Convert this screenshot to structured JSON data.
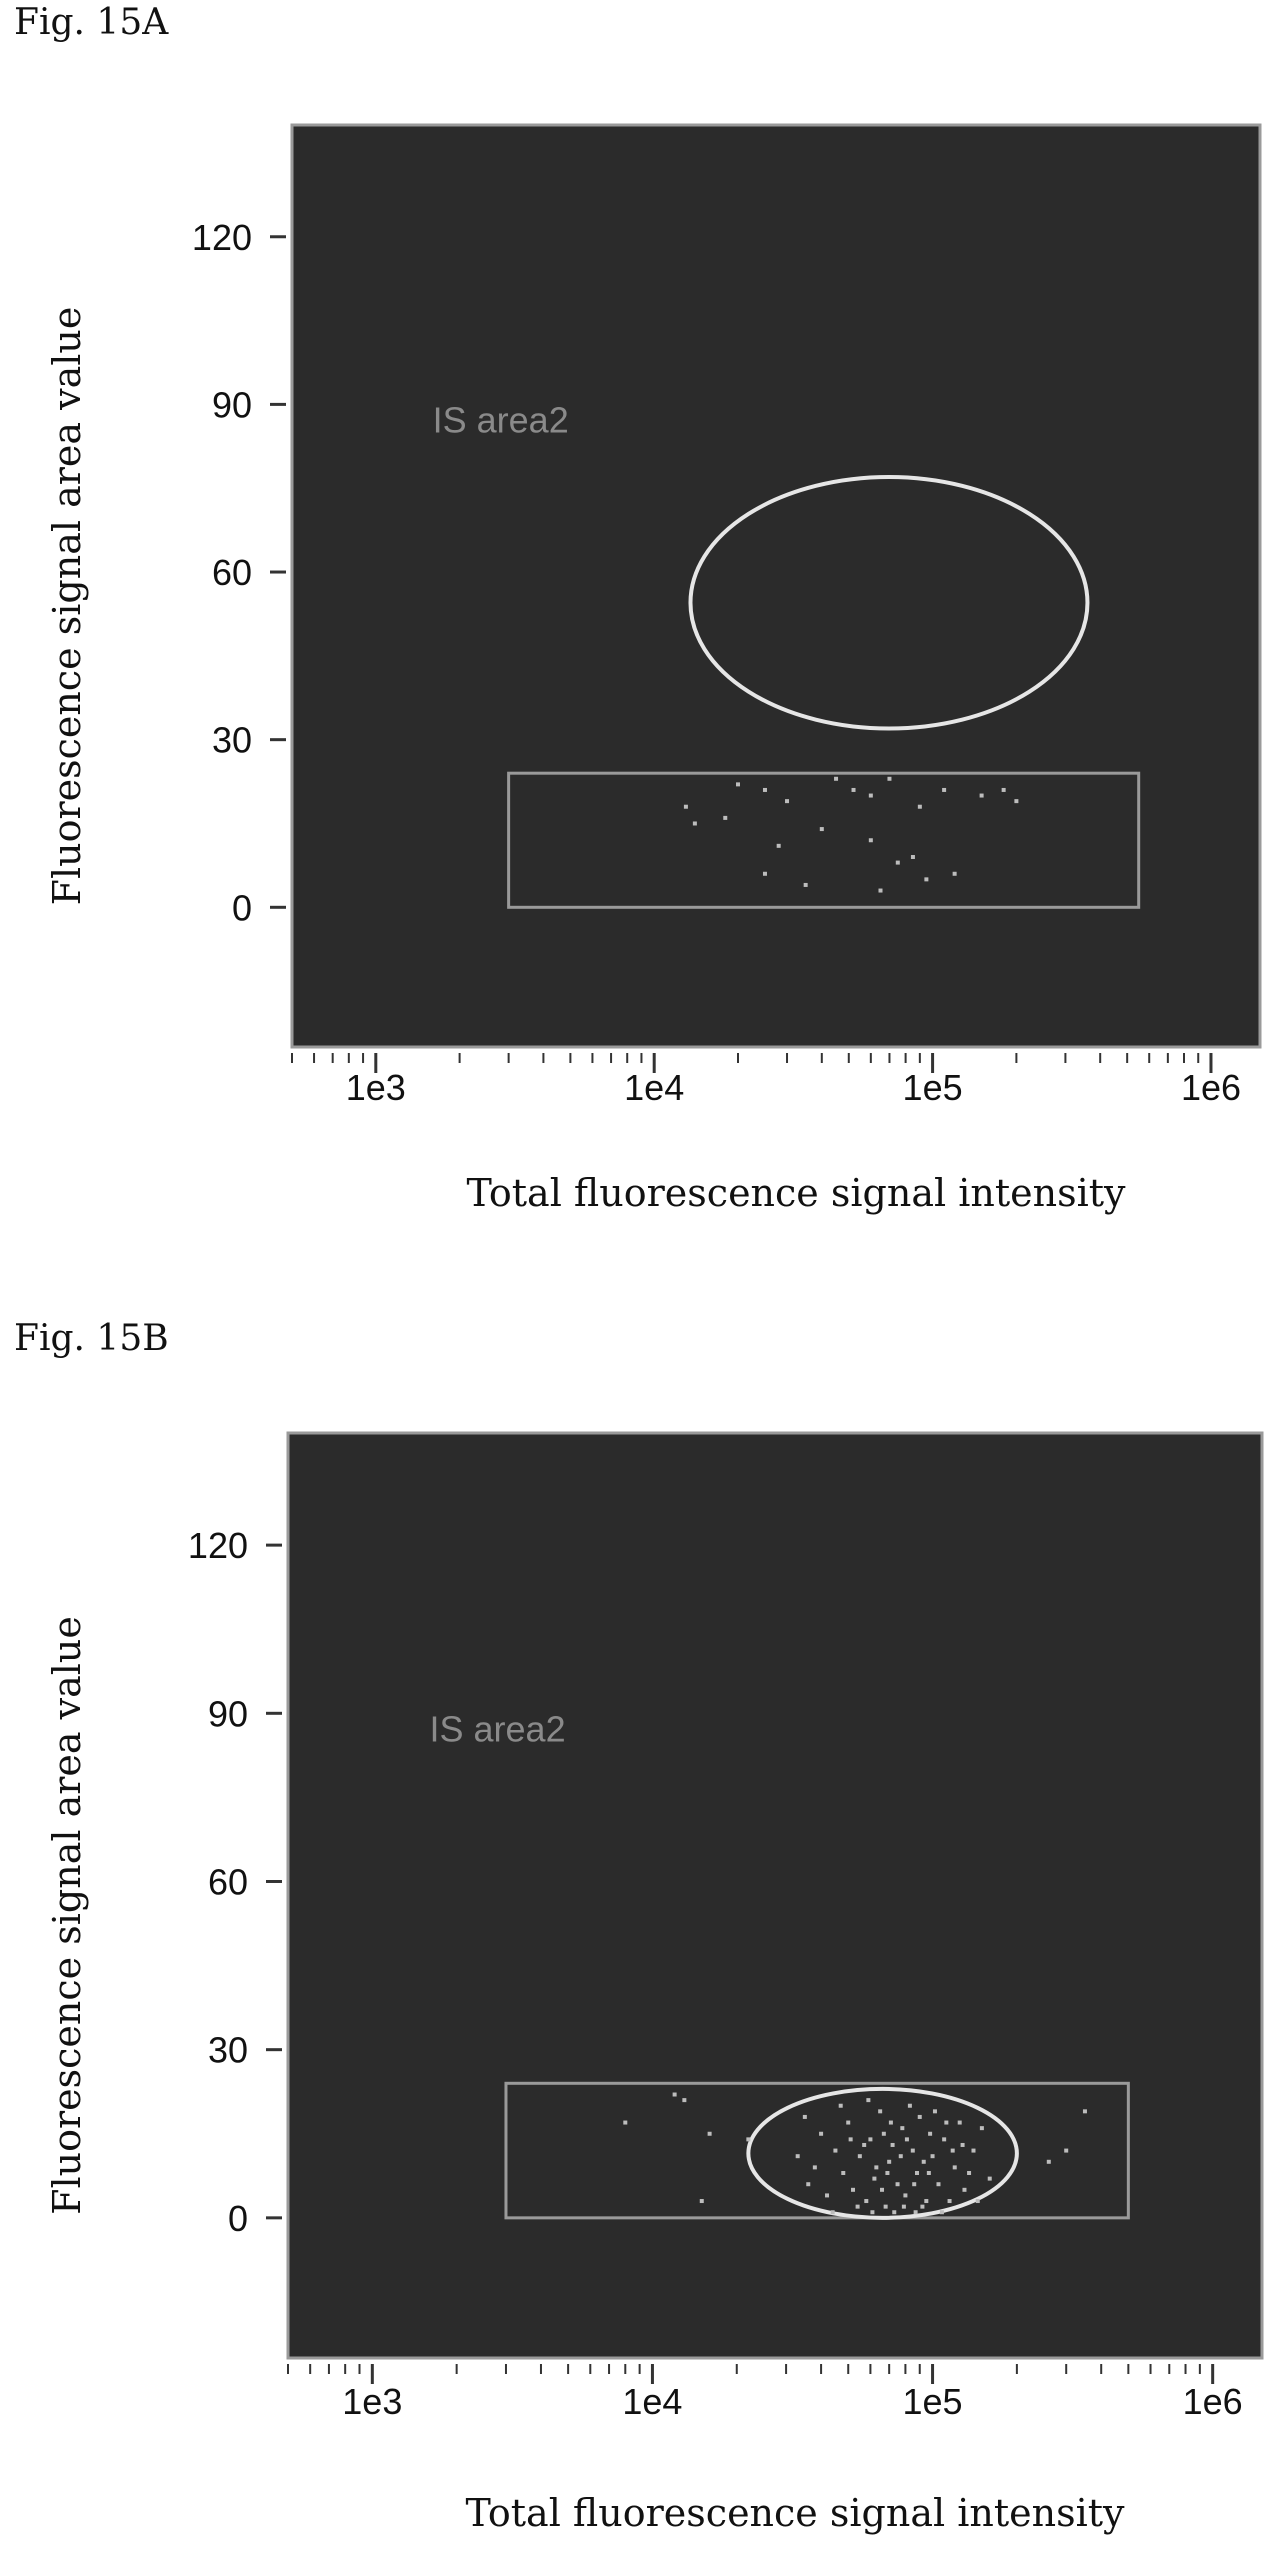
{
  "figures": [
    {
      "label": "Fig. 15A",
      "gate_label": "IS area2"
    },
    {
      "label": "Fig. 15B",
      "gate_label": "IS area2"
    }
  ],
  "colors": {
    "plot_background": "#2b2b2b",
    "gate_ellipse": "#e6e6e6",
    "gate_rect": "#9a9a9a",
    "gate_label": "#8a8a8a",
    "events": "#bdbdbd"
  },
  "chart_data": [
    {
      "type": "scatter",
      "title": "",
      "xlabel": "Total fluorescence signal intensity",
      "ylabel": "Fluorescence signal area value",
      "xscale": "log",
      "xlim": [
        500,
        1500000
      ],
      "ylim": [
        -25,
        140
      ],
      "xticks": [
        1000,
        10000,
        100000,
        1000000
      ],
      "xtick_labels": [
        "1e3",
        "1e4",
        "1e5",
        "1e6"
      ],
      "yticks": [
        0,
        30,
        60,
        90,
        120
      ],
      "ytick_labels": [
        "0",
        "30",
        "60",
        "90",
        "120"
      ],
      "grid": false,
      "gates": {
        "ellipse": {
          "center": [
            45000,
            54
          ],
          "x_range": [
            13500,
            360000
          ],
          "y_range": [
            32,
            77
          ]
        },
        "rect": {
          "x_range": [
            3000,
            550000
          ],
          "y_range": [
            0,
            24
          ]
        }
      },
      "points": [
        [
          20000,
          22
        ],
        [
          25000,
          21
        ],
        [
          30000,
          19
        ],
        [
          45000,
          23
        ],
        [
          52000,
          21
        ],
        [
          60000,
          20
        ],
        [
          70000,
          23
        ],
        [
          90000,
          18
        ],
        [
          110000,
          21
        ],
        [
          150000,
          20
        ],
        [
          180000,
          21
        ],
        [
          13000,
          18
        ],
        [
          14000,
          15
        ],
        [
          18000,
          16
        ],
        [
          28000,
          11
        ],
        [
          40000,
          14
        ],
        [
          60000,
          12
        ],
        [
          75000,
          8
        ],
        [
          85000,
          9
        ],
        [
          95000,
          5
        ],
        [
          120000,
          6
        ],
        [
          35000,
          4
        ],
        [
          25000,
          6
        ],
        [
          200000,
          19
        ],
        [
          65000,
          3
        ]
      ]
    },
    {
      "type": "scatter",
      "title": "",
      "xlabel": "Total fluorescence signal intensity",
      "ylabel": "Fluorescence signal area value",
      "xscale": "log",
      "xlim": [
        500,
        1500000
      ],
      "ylim": [
        -25,
        140
      ],
      "xticks": [
        1000,
        10000,
        100000,
        1000000
      ],
      "xtick_labels": [
        "1e3",
        "1e4",
        "1e5",
        "1e6"
      ],
      "yticks": [
        0,
        30,
        60,
        90,
        120
      ],
      "ytick_labels": [
        "0",
        "30",
        "60",
        "90",
        "120"
      ],
      "grid": false,
      "gates": {
        "ellipse": {
          "center": [
            65000,
            11
          ],
          "x_range": [
            22000,
            200000
          ],
          "y_range": [
            0,
            23
          ]
        },
        "rect": {
          "x_range": [
            3000,
            500000
          ],
          "y_range": [
            0,
            24
          ]
        }
      },
      "points": [
        [
          12000,
          22
        ],
        [
          13000,
          21
        ],
        [
          8000,
          17
        ],
        [
          16000,
          15
        ],
        [
          22000,
          14
        ],
        [
          350000,
          19
        ],
        [
          300000,
          12
        ],
        [
          260000,
          10
        ],
        [
          15000,
          3
        ],
        [
          35000,
          18
        ],
        [
          40000,
          15
        ],
        [
          45000,
          12
        ],
        [
          48000,
          8
        ],
        [
          50000,
          17
        ],
        [
          52000,
          5
        ],
        [
          55000,
          11
        ],
        [
          58000,
          3
        ],
        [
          60000,
          14
        ],
        [
          62000,
          7
        ],
        [
          65000,
          19
        ],
        [
          68000,
          2
        ],
        [
          70000,
          10
        ],
        [
          72000,
          13
        ],
        [
          75000,
          6
        ],
        [
          78000,
          16
        ],
        [
          80000,
          4
        ],
        [
          85000,
          12
        ],
        [
          88000,
          8
        ],
        [
          90000,
          18
        ],
        [
          95000,
          3
        ],
        [
          100000,
          11
        ],
        [
          105000,
          6
        ],
        [
          110000,
          14
        ],
        [
          120000,
          9
        ],
        [
          130000,
          5
        ],
        [
          140000,
          12
        ],
        [
          150000,
          16
        ],
        [
          160000,
          7
        ],
        [
          42000,
          4
        ],
        [
          47000,
          20
        ],
        [
          54000,
          2
        ],
        [
          57000,
          13
        ],
        [
          63000,
          9
        ],
        [
          67000,
          15
        ],
        [
          73000,
          1
        ],
        [
          77000,
          11
        ],
        [
          83000,
          20
        ],
        [
          92000,
          2
        ],
        [
          98000,
          15
        ],
        [
          115000,
          3
        ],
        [
          125000,
          17
        ],
        [
          38000,
          9
        ],
        [
          44000,
          1
        ],
        [
          51000,
          14
        ],
        [
          59000,
          21
        ],
        [
          66000,
          5
        ],
        [
          71000,
          17
        ],
        [
          79000,
          2
        ],
        [
          86000,
          6
        ],
        [
          93000,
          10
        ],
        [
          102000,
          19
        ],
        [
          108000,
          1
        ],
        [
          118000,
          12
        ],
        [
          135000,
          8
        ],
        [
          145000,
          3
        ],
        [
          33000,
          11
        ],
        [
          36000,
          6
        ],
        [
          61000,
          1
        ],
        [
          69000,
          8
        ],
        [
          81000,
          14
        ],
        [
          87000,
          1
        ],
        [
          97000,
          8
        ],
        [
          112000,
          17
        ],
        [
          128000,
          13
        ]
      ]
    }
  ]
}
